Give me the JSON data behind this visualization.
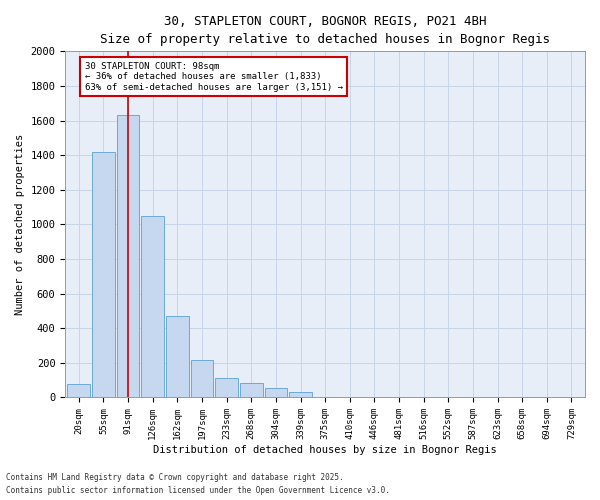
{
  "title_line1": "30, STAPLETON COURT, BOGNOR REGIS, PO21 4BH",
  "title_line2": "Size of property relative to detached houses in Bognor Regis",
  "xlabel": "Distribution of detached houses by size in Bognor Regis",
  "ylabel": "Number of detached properties",
  "categories": [
    "20sqm",
    "55sqm",
    "91sqm",
    "126sqm",
    "162sqm",
    "197sqm",
    "233sqm",
    "268sqm",
    "304sqm",
    "339sqm",
    "375sqm",
    "410sqm",
    "446sqm",
    "481sqm",
    "516sqm",
    "552sqm",
    "587sqm",
    "623sqm",
    "658sqm",
    "694sqm",
    "729sqm"
  ],
  "values": [
    75,
    1420,
    1630,
    1050,
    470,
    215,
    110,
    85,
    55,
    30,
    0,
    0,
    0,
    0,
    0,
    0,
    0,
    0,
    0,
    0,
    0
  ],
  "bar_color": "#c5d8ef",
  "bar_edge_color": "#6aaad4",
  "grid_color": "#c8d4e8",
  "background_color": "#e8eef8",
  "annotation_box_facecolor": "#ffffff",
  "annotation_border_color": "#cc0000",
  "red_line_color": "#cc0000",
  "annotation_text_line1": "30 STAPLETON COURT: 98sqm",
  "annotation_text_line2": "← 36% of detached houses are smaller (1,833)",
  "annotation_text_line3": "63% of semi-detached houses are larger (3,151) →",
  "ylim": [
    0,
    2000
  ],
  "yticks": [
    0,
    200,
    400,
    600,
    800,
    1000,
    1200,
    1400,
    1600,
    1800,
    2000
  ],
  "footnote_line1": "Contains HM Land Registry data © Crown copyright and database right 2025.",
  "footnote_line2": "Contains public sector information licensed under the Open Government Licence v3.0."
}
